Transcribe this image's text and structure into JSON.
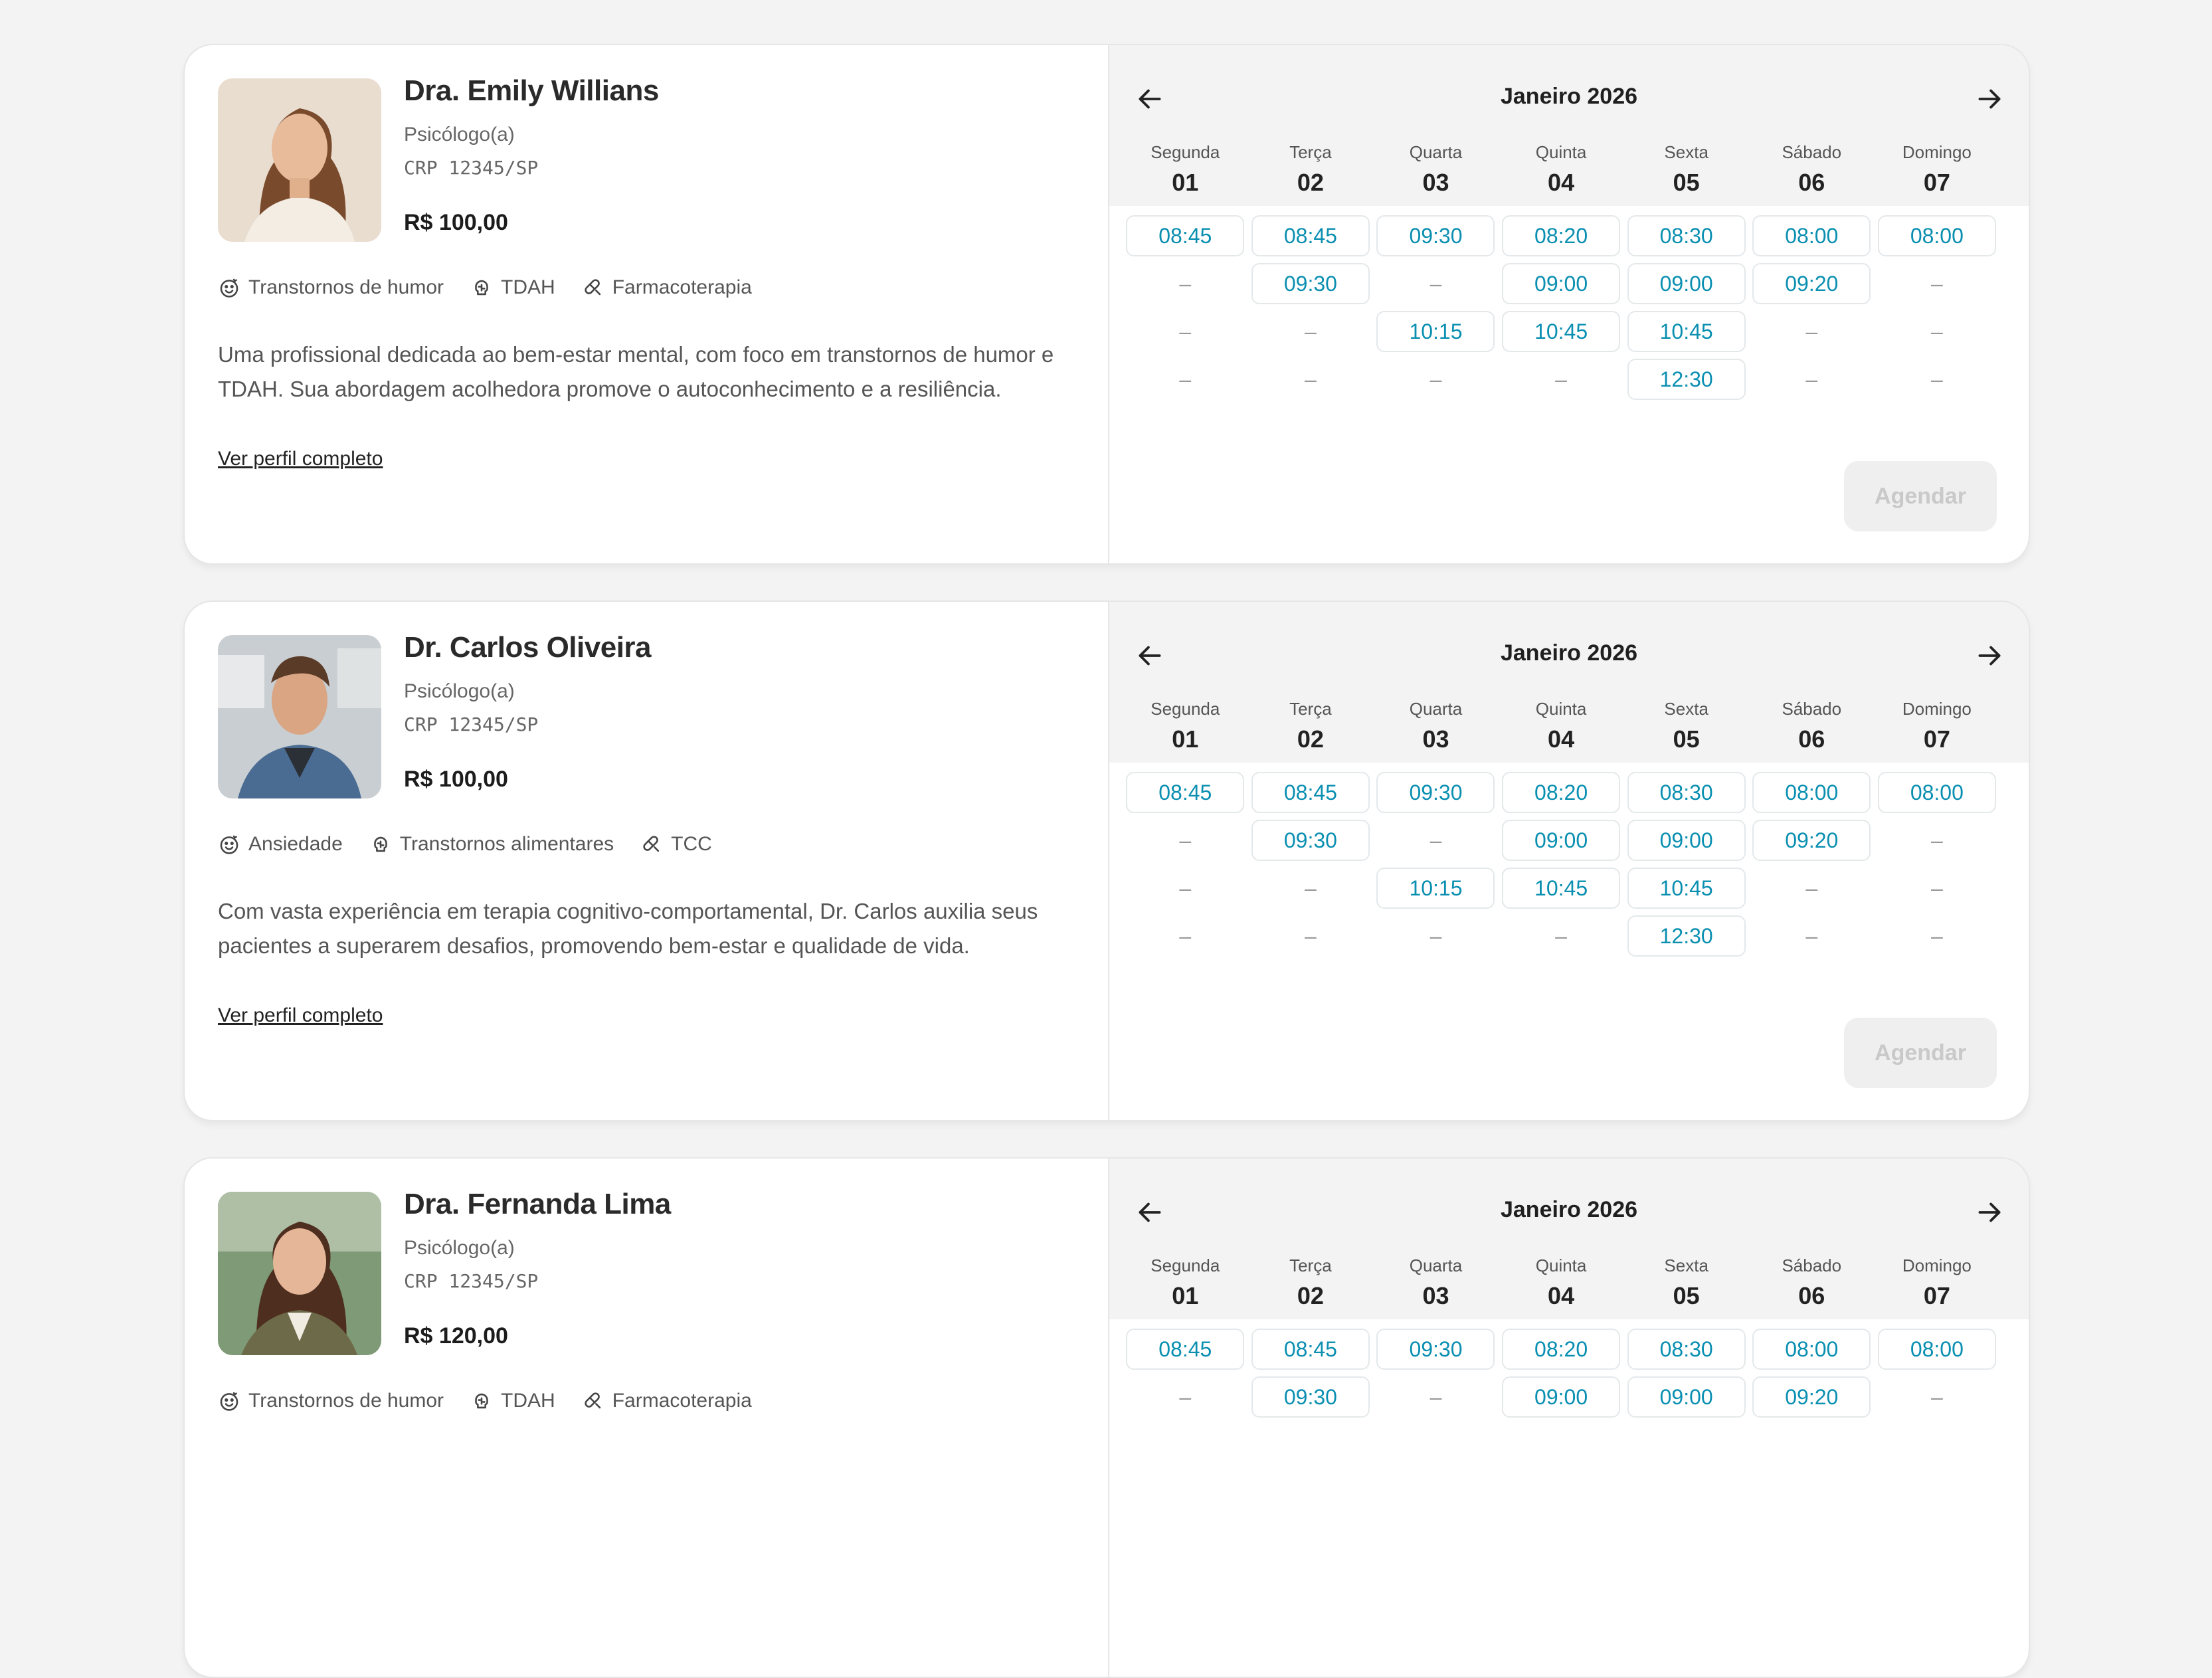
{
  "profile_link_label": "Ver perfil completo",
  "book_label": "Agendar",
  "accent_color": "#0a8fb1",
  "professionals": [
    {
      "name": "Dra. Emily Willians",
      "role": "Psicólogo(a)",
      "crp": "CRP 12345/SP",
      "price": "R$ 100,00",
      "photo": "woman-smiling-photo",
      "tags": [
        {
          "icon": "smile-icon",
          "label": "Transtornos de humor"
        },
        {
          "icon": "brain-icon",
          "label": "TDAH"
        },
        {
          "icon": "pill-icon",
          "label": "Farmacoterapia"
        }
      ],
      "description": "Uma profissional dedicada ao bem-estar mental, com foco em transtornos de humor e TDAH. Sua abordagem acolhedora promove o autoconhecimento e a resiliência.",
      "calendar": {
        "month": "Janeiro 2026",
        "days": [
          {
            "name": "Segunda",
            "num": "01",
            "slots": [
              "08:45",
              "–",
              "–",
              "–"
            ]
          },
          {
            "name": "Terça",
            "num": "02",
            "slots": [
              "08:45",
              "09:30",
              "–",
              "–"
            ]
          },
          {
            "name": "Quarta",
            "num": "03",
            "slots": [
              "09:30",
              "–",
              "10:15",
              "–"
            ]
          },
          {
            "name": "Quinta",
            "num": "04",
            "slots": [
              "08:20",
              "09:00",
              "10:45",
              "–"
            ]
          },
          {
            "name": "Sexta",
            "num": "05",
            "slots": [
              "08:30",
              "09:00",
              "10:45",
              "12:30"
            ]
          },
          {
            "name": "Sábado",
            "num": "06",
            "slots": [
              "08:00",
              "09:20",
              "–",
              "–"
            ]
          },
          {
            "name": "Domingo",
            "num": "07",
            "slots": [
              "08:00",
              "–",
              "–",
              "–"
            ]
          }
        ]
      }
    },
    {
      "name": "Dr. Carlos Oliveira",
      "role": "Psicólogo(a)",
      "crp": "CRP 12345/SP",
      "price": "R$ 100,00",
      "photo": "man-denim-jacket-photo",
      "tags": [
        {
          "icon": "smile-icon",
          "label": "Ansiedade"
        },
        {
          "icon": "brain-icon",
          "label": "Transtornos alimentares"
        },
        {
          "icon": "pill-icon",
          "label": "TCC"
        }
      ],
      "description": "Com vasta experiência em terapia cognitivo-comportamental, Dr. Carlos auxilia seus pacientes a superarem desafios, promovendo bem-estar e qualidade de vida.",
      "calendar": {
        "month": "Janeiro 2026",
        "days": [
          {
            "name": "Segunda",
            "num": "01",
            "slots": [
              "08:45",
              "–",
              "–",
              "–"
            ]
          },
          {
            "name": "Terça",
            "num": "02",
            "slots": [
              "08:45",
              "09:30",
              "–",
              "–"
            ]
          },
          {
            "name": "Quarta",
            "num": "03",
            "slots": [
              "09:30",
              "–",
              "10:15",
              "–"
            ]
          },
          {
            "name": "Quinta",
            "num": "04",
            "slots": [
              "08:20",
              "09:00",
              "10:45",
              "–"
            ]
          },
          {
            "name": "Sexta",
            "num": "05",
            "slots": [
              "08:30",
              "09:00",
              "10:45",
              "12:30"
            ]
          },
          {
            "name": "Sábado",
            "num": "06",
            "slots": [
              "08:00",
              "09:20",
              "–",
              "–"
            ]
          },
          {
            "name": "Domingo",
            "num": "07",
            "slots": [
              "08:00",
              "–",
              "–",
              "–"
            ]
          }
        ]
      }
    },
    {
      "name": "Dra. Fernanda Lima",
      "role": "Psicólogo(a)",
      "crp": "CRP 12345/SP",
      "price": "R$ 120,00",
      "photo": "woman-outdoor-photo",
      "tags": [
        {
          "icon": "smile-icon",
          "label": "Transtornos de humor"
        },
        {
          "icon": "brain-icon",
          "label": "TDAH"
        },
        {
          "icon": "pill-icon",
          "label": "Farmacoterapia"
        }
      ],
      "description": "",
      "calendar": {
        "month": "Janeiro 2026",
        "days": [
          {
            "name": "Segunda",
            "num": "01",
            "slots": [
              "08:45",
              "–"
            ]
          },
          {
            "name": "Terça",
            "num": "02",
            "slots": [
              "08:45",
              "09:30"
            ]
          },
          {
            "name": "Quarta",
            "num": "03",
            "slots": [
              "09:30",
              "–"
            ]
          },
          {
            "name": "Quinta",
            "num": "04",
            "slots": [
              "08:20",
              "09:00"
            ]
          },
          {
            "name": "Sexta",
            "num": "05",
            "slots": [
              "08:30",
              "09:00"
            ]
          },
          {
            "name": "Sábado",
            "num": "06",
            "slots": [
              "08:00",
              "09:20"
            ]
          },
          {
            "name": "Domingo",
            "num": "07",
            "slots": [
              "08:00",
              "–"
            ]
          }
        ]
      }
    }
  ]
}
